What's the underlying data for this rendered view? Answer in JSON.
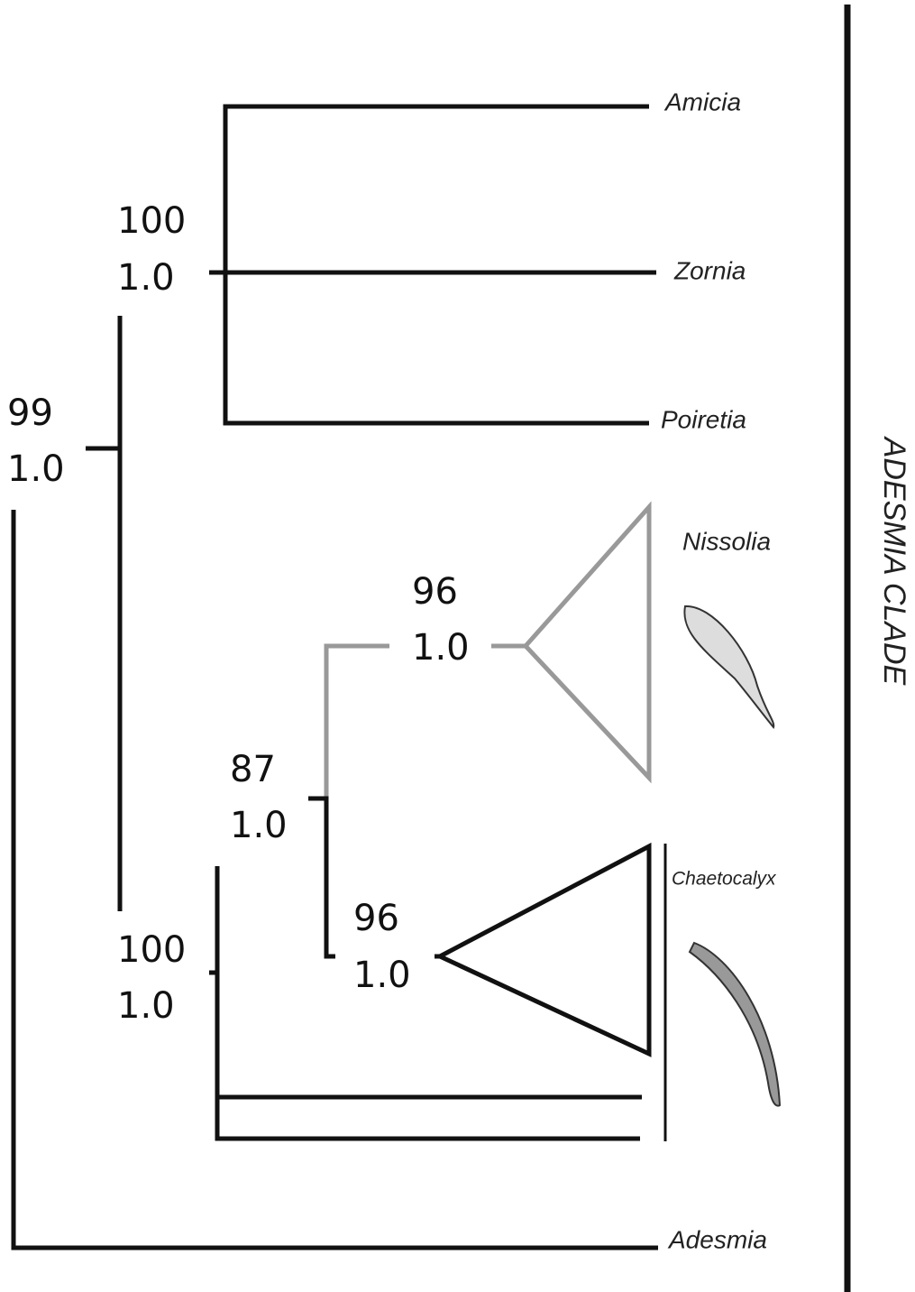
{
  "taxa": [
    "Amicia",
    "Zornia",
    "Poiretia",
    "Nissolia",
    "Chaetocalyx",
    "Adesmia"
  ],
  "nodes": [
    {
      "bootstrap": "100",
      "posterior": "1.0"
    },
    {
      "bootstrap": "99",
      "posterior": "1.0"
    },
    {
      "bootstrap": "96",
      "posterior": "1.0"
    },
    {
      "bootstrap": "87",
      "posterior": "1.0"
    },
    {
      "bootstrap": "96",
      "posterior": "1.0"
    },
    {
      "bootstrap": "100",
      "posterior": "1.0"
    }
  ],
  "clade_label": "ADESMIA CLADE"
}
